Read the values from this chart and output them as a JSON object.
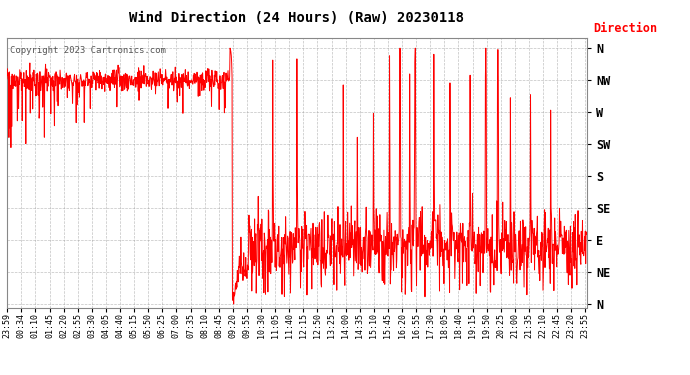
{
  "title": "Wind Direction (24 Hours) (Raw) 20230118",
  "copyright": "Copyright 2023 Cartronics.com",
  "legend_label": "Direction",
  "legend_color": "#ff0000",
  "line_color": "#ff0000",
  "background_color": "#ffffff",
  "grid_color": "#999999",
  "ytick_labels": [
    "N",
    "NE",
    "E",
    "SE",
    "S",
    "SW",
    "W",
    "NW",
    "N"
  ],
  "ytick_values": [
    0,
    45,
    90,
    135,
    180,
    225,
    270,
    315,
    360
  ],
  "xtick_labels": [
    "23:59",
    "00:34",
    "01:10",
    "01:45",
    "02:20",
    "02:55",
    "03:30",
    "04:05",
    "04:40",
    "05:15",
    "05:50",
    "06:25",
    "07:00",
    "07:35",
    "08:10",
    "08:45",
    "09:20",
    "09:55",
    "10:30",
    "11:05",
    "11:40",
    "12:15",
    "12:50",
    "13:25",
    "14:00",
    "14:35",
    "15:10",
    "15:45",
    "16:20",
    "16:55",
    "17:30",
    "18:05",
    "18:40",
    "19:15",
    "19:50",
    "20:25",
    "21:00",
    "21:35",
    "22:10",
    "22:45",
    "23:20",
    "23:55"
  ]
}
